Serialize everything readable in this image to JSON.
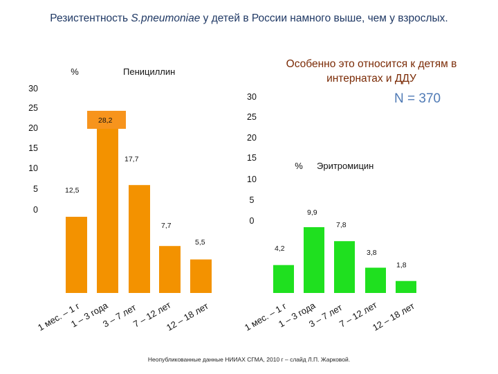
{
  "slide": {
    "title_prefix": "Резистентность ",
    "title_species": "S.pneumoniae",
    "title_suffix": " у детей в России намного выше, чем у взрослых.",
    "note": "Особенно это относится к детям в интернатах и ДДУ",
    "n_label": "N = 370",
    "source": "Неопубликованные данные НИИАХ СГМА, 2010 г – слайд Л.П. Жарковой."
  },
  "colors": {
    "penicillin": "#f39200",
    "erythromycin": "#1fe01f",
    "highlight": "#f7941d"
  },
  "chart_data": [
    {
      "type": "bar",
      "unit_label": "%",
      "series_name": "Пенициллин",
      "categories": [
        "1 мес. – 1 г",
        "1 – 3 года",
        "3 – 7 лет",
        "7 – 12 лет",
        "12 – 18 лет"
      ],
      "values": [
        12.5,
        28.2,
        17.7,
        7.7,
        5.5
      ],
      "value_labels": [
        "12,5",
        "28,2",
        "17,7",
        "7,7",
        "5,5"
      ],
      "ticks": [
        "0",
        "5",
        "10",
        "15",
        "20",
        "25",
        "30"
      ],
      "ylim": [
        0,
        30
      ]
    },
    {
      "type": "bar",
      "unit_label": "%",
      "series_name": "Эритромицин",
      "categories": [
        "1 мес. – 1 г",
        "1 – 3 года",
        "3 – 7 лет",
        "7 – 12 лет",
        "12 – 18 лет"
      ],
      "values": [
        4.2,
        9.9,
        7.8,
        3.8,
        1.8
      ],
      "value_labels": [
        "4,2",
        "9,9",
        "7,8",
        "3,8",
        "1,8"
      ],
      "ticks": [
        "0",
        "5",
        "10",
        "15",
        "20",
        "25",
        "30"
      ],
      "ylim": [
        0,
        30
      ]
    }
  ]
}
